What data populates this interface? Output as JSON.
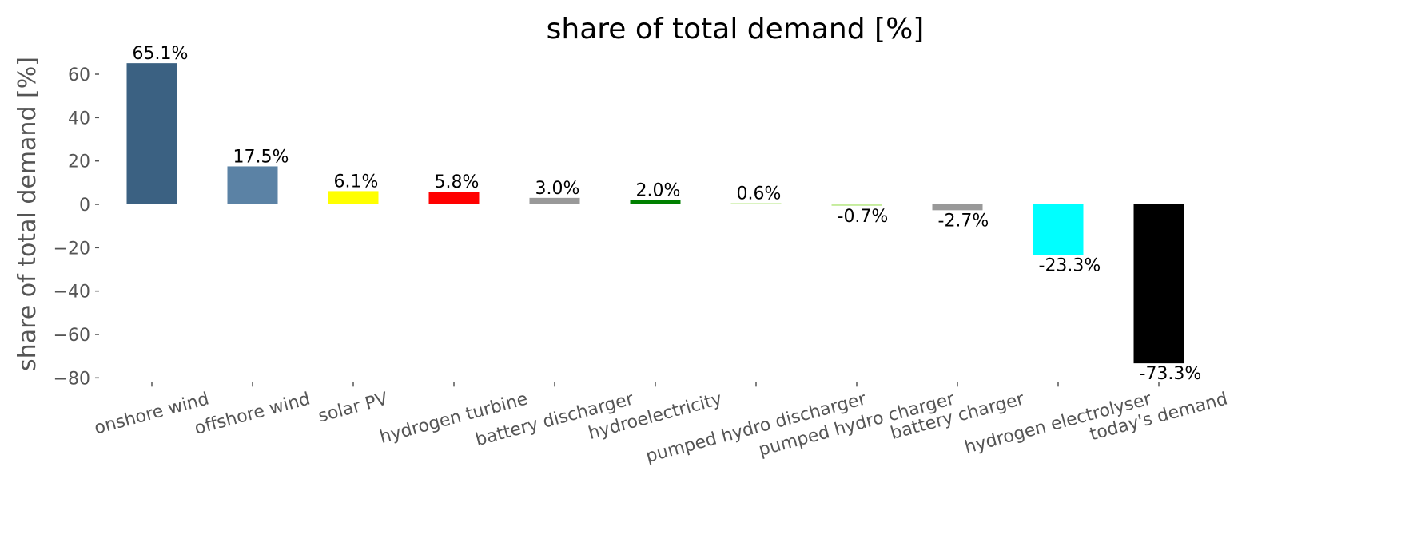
{
  "chart_data": {
    "type": "bar",
    "title": "share of total demand [%]",
    "ylabel": "share of total demand [%]",
    "categories": [
      "onshore wind",
      "offshore wind",
      "solar PV",
      "hydrogen turbine",
      "battery discharger",
      "hydroelectricity",
      "pumped hydro discharger",
      "pumped hydro charger",
      "battery charger",
      "hydrogen electrolyser",
      "today's demand"
    ],
    "values": [
      65.1,
      17.5,
      6.1,
      5.8,
      3.0,
      2.0,
      0.6,
      -0.7,
      -2.7,
      -23.3,
      -73.3
    ],
    "value_labels": [
      "65.1%",
      "17.5%",
      "6.1%",
      "5.8%",
      "3.0%",
      "2.0%",
      "0.6%",
      "-0.7%",
      "-2.7%",
      "-23.3%",
      "-73.3%"
    ],
    "colors": [
      "#3b6182",
      "#5b82a5",
      "#ffff00",
      "#ff0000",
      "#999999",
      "#008000",
      "#c5ec9c",
      "#c5ec9c",
      "#999999",
      "#00ffff",
      "#000000"
    ],
    "ylim": [
      -80,
      69
    ],
    "yticks": [
      {
        "value": -80,
        "label": "−80"
      },
      {
        "value": -60,
        "label": "−60"
      },
      {
        "value": -40,
        "label": "−40"
      },
      {
        "value": -20,
        "label": "−20"
      },
      0,
      20,
      40,
      60
    ],
    "grid": false
  }
}
